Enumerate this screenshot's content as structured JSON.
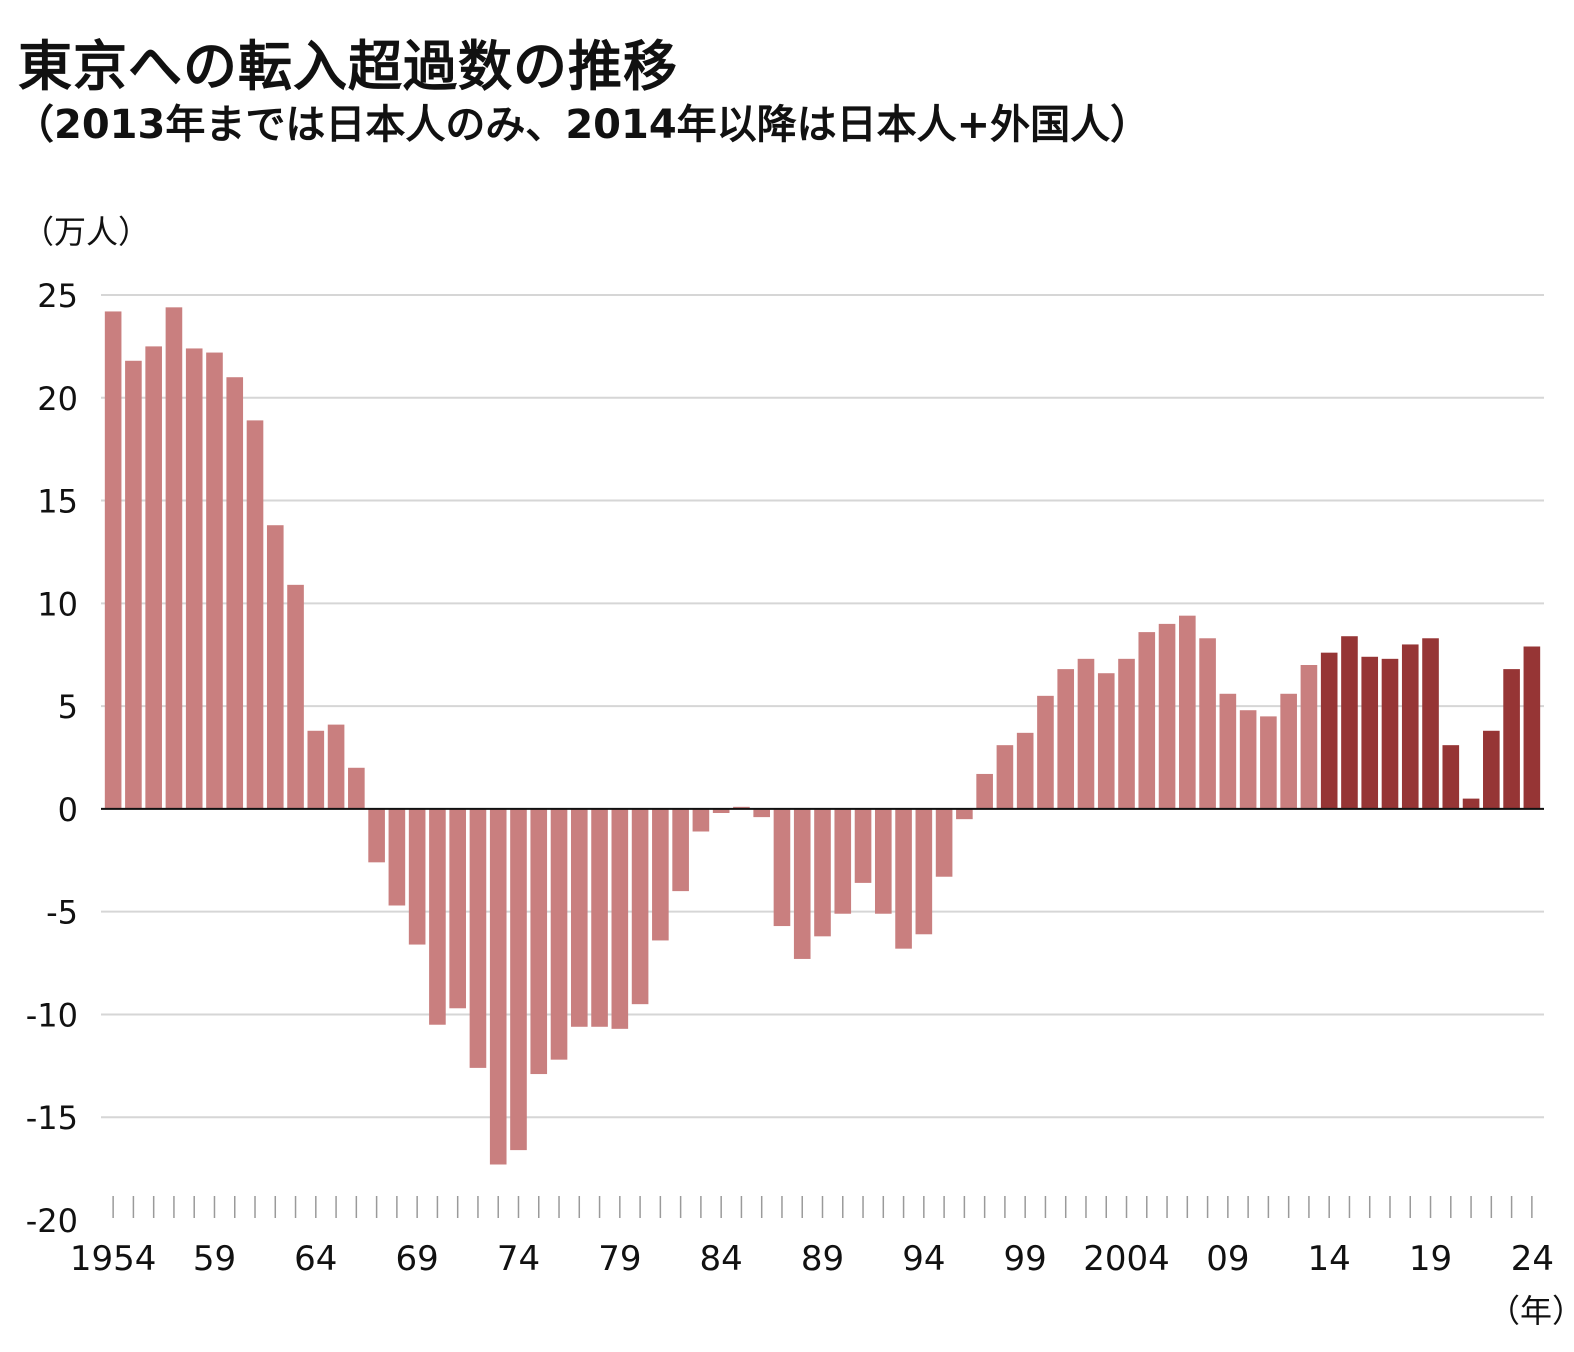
{
  "chart_data": {
    "type": "bar",
    "title": "東京への転入超過数の推移",
    "subtitle": "（2013年までは日本人のみ、2014年以降は日本人+外国人）",
    "ylabel": "（万人）",
    "xlabel": "（年）",
    "ylim": [
      -20,
      25
    ],
    "yticks": [
      "25",
      "20",
      "15",
      "10",
      "5",
      "0",
      "-5",
      "-10",
      "-15",
      "-20"
    ],
    "xtick_labels": [
      {
        "year": 1954,
        "label": "1954"
      },
      {
        "year": 1959,
        "label": "59"
      },
      {
        "year": 1964,
        "label": "64"
      },
      {
        "year": 1969,
        "label": "69"
      },
      {
        "year": 1974,
        "label": "74"
      },
      {
        "year": 1979,
        "label": "79"
      },
      {
        "year": 1984,
        "label": "84"
      },
      {
        "year": 1989,
        "label": "89"
      },
      {
        "year": 1994,
        "label": "94"
      },
      {
        "year": 1999,
        "label": "99"
      },
      {
        "year": 2004,
        "label": "2004"
      },
      {
        "year": 2009,
        "label": "09"
      },
      {
        "year": 2014,
        "label": "14"
      },
      {
        "year": 2019,
        "label": "19"
      },
      {
        "year": 2024,
        "label": "24"
      }
    ],
    "series": [
      {
        "name": "日本人のみ",
        "color": "#c97f7f",
        "years_from": 1954,
        "years_to": 2013
      },
      {
        "name": "日本人+外国人",
        "color": "#963535",
        "years_from": 2014,
        "years_to": 2024
      }
    ],
    "x": [
      1954,
      1955,
      1956,
      1957,
      1958,
      1959,
      1960,
      1961,
      1962,
      1963,
      1964,
      1965,
      1966,
      1967,
      1968,
      1969,
      1970,
      1971,
      1972,
      1973,
      1974,
      1975,
      1976,
      1977,
      1978,
      1979,
      1980,
      1981,
      1982,
      1983,
      1984,
      1985,
      1986,
      1987,
      1988,
      1989,
      1990,
      1991,
      1992,
      1993,
      1994,
      1995,
      1996,
      1997,
      1998,
      1999,
      2000,
      2001,
      2002,
      2003,
      2004,
      2005,
      2006,
      2007,
      2008,
      2009,
      2010,
      2011,
      2012,
      2013,
      2014,
      2015,
      2016,
      2017,
      2018,
      2019,
      2020,
      2021,
      2022,
      2023,
      2024
    ],
    "values": [
      24.2,
      21.8,
      22.5,
      24.4,
      22.4,
      22.2,
      21.0,
      18.9,
      13.8,
      10.9,
      3.8,
      4.1,
      2.0,
      -2.6,
      -4.7,
      -6.6,
      -10.5,
      -9.7,
      -12.6,
      -17.3,
      -16.6,
      -12.9,
      -12.2,
      -10.6,
      -10.6,
      -10.7,
      -9.5,
      -6.4,
      -4.0,
      -1.1,
      -0.2,
      0.1,
      -0.4,
      -5.7,
      -7.3,
      -6.2,
      -5.1,
      -3.6,
      -5.1,
      -6.8,
      -6.1,
      -3.3,
      -0.5,
      1.7,
      3.1,
      3.7,
      5.5,
      6.8,
      7.3,
      6.6,
      7.3,
      8.6,
      9.0,
      9.4,
      8.3,
      5.6,
      4.8,
      4.5,
      5.6,
      7.0,
      7.6,
      8.4,
      7.4,
      7.3,
      8.0,
      8.3,
      3.1,
      0.5,
      3.8,
      6.8,
      7.9
    ]
  }
}
